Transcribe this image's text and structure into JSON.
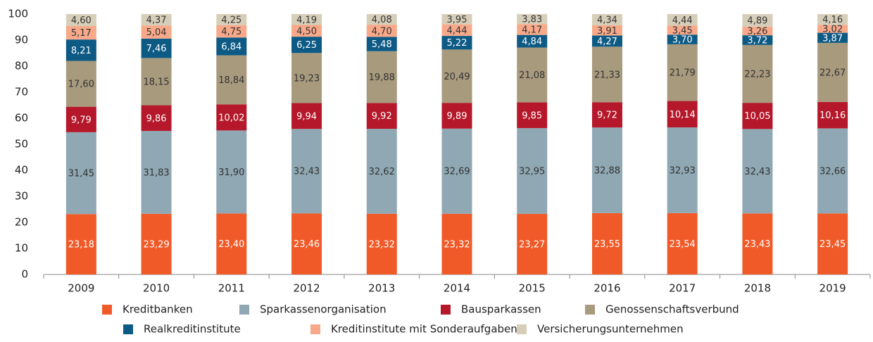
{
  "chart_data": {
    "type": "stacked_bar",
    "categories": [
      "2009",
      "2010",
      "2011",
      "2012",
      "2013",
      "2014",
      "2015",
      "2016",
      "2017",
      "2018",
      "2019"
    ],
    "ylim": [
      0,
      100
    ],
    "yticks": [
      0,
      10,
      20,
      30,
      40,
      50,
      60,
      70,
      80,
      90,
      100
    ],
    "series": [
      {
        "name": "Kreditbanken",
        "color": "#f05a28",
        "values": [
          23.18,
          23.29,
          23.4,
          23.46,
          23.32,
          23.32,
          23.27,
          23.55,
          23.54,
          23.43,
          23.45
        ],
        "value_labels": [
          "23,18",
          "23,29",
          "23,40",
          "23,46",
          "23,32",
          "23,32",
          "23,27",
          "23,55",
          "23,54",
          "23,43",
          "23,45"
        ]
      },
      {
        "name": "Sparkassenorganisation",
        "color": "#8fa8b3",
        "values": [
          31.45,
          31.83,
          31.9,
          32.43,
          32.62,
          32.69,
          32.95,
          32.88,
          32.93,
          32.43,
          32.66
        ],
        "value_labels": [
          "31,45",
          "31,83",
          "31,90",
          "32,43",
          "32,62",
          "32,69",
          "32,95",
          "32,88",
          "32,93",
          "32,43",
          "32,66"
        ]
      },
      {
        "name": "Bausparkassen",
        "color": "#b5182a",
        "values": [
          9.79,
          9.86,
          10.02,
          9.94,
          9.92,
          9.89,
          9.85,
          9.72,
          10.14,
          10.05,
          10.16
        ],
        "value_labels": [
          "9,79",
          "9,86",
          "10,02",
          "9,94",
          "9,92",
          "9,89",
          "9,85",
          "9,72",
          "10,14",
          "10,05",
          "10,16"
        ]
      },
      {
        "name": "Genossenschaftsverbund",
        "color": "#a89a7d",
        "values": [
          17.6,
          18.15,
          18.84,
          19.23,
          19.88,
          20.49,
          21.08,
          21.33,
          21.79,
          22.23,
          22.67
        ],
        "value_labels": [
          "17,60",
          "18,15",
          "18,84",
          "19,23",
          "19,88",
          "20,49",
          "21,08",
          "21,33",
          "21,79",
          "22,23",
          "22,67"
        ]
      },
      {
        "name": "Realkreditinstitute",
        "color": "#0d5a85",
        "values": [
          8.21,
          7.46,
          6.84,
          6.25,
          5.48,
          5.22,
          4.84,
          4.27,
          3.7,
          3.72,
          3.87
        ],
        "value_labels": [
          "8,21",
          "7,46",
          "6,84",
          "6,25",
          "5,48",
          "5,22",
          "4,84",
          "4,27",
          "3,70",
          "3,72",
          "3,87"
        ]
      },
      {
        "name": "Kreditinstitute mit Sonderaufgaben",
        "color": "#f7a98a",
        "values": [
          5.17,
          5.04,
          4.75,
          4.5,
          4.7,
          4.44,
          4.17,
          3.91,
          3.45,
          3.26,
          3.02
        ],
        "value_labels": [
          "5,17",
          "5,04",
          "4,75",
          "4,50",
          "4,70",
          "4,44",
          "4,17",
          "3,91",
          "3,45",
          "3,26",
          "3,02"
        ]
      },
      {
        "name": "Versicherungsunternehmen",
        "color": "#d6ceb8",
        "values": [
          4.6,
          4.37,
          4.25,
          4.19,
          4.08,
          3.95,
          3.83,
          4.34,
          4.44,
          4.89,
          4.16
        ],
        "value_labels": [
          "4,60",
          "4,37",
          "4,25",
          "4,19",
          "4,08",
          "3,95",
          "3,83",
          "4,34",
          "4,44",
          "4,89",
          "4,16"
        ]
      }
    ]
  }
}
